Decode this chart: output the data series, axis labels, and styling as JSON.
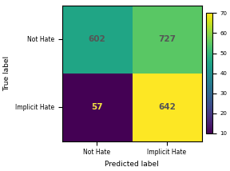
{
  "matrix": [
    [
      602,
      727
    ],
    [
      57,
      642
    ]
  ],
  "true_labels": [
    "Not Hate",
    "Implicit Hate"
  ],
  "pred_labels": [
    "Not Hate",
    "Implicit Hate"
  ],
  "xlabel": "Predicted label",
  "ylabel": "True label",
  "colormap": "viridis",
  "vmin": 10,
  "vmax": 70,
  "colorbar_ticks": [
    10,
    20,
    30,
    40,
    50,
    60,
    70
  ],
  "text_colors": {
    "dark_bg": "#f5e642",
    "light_bg": "#555555"
  },
  "tick_fontsize": 5.5,
  "label_fontsize": 6.5,
  "annot_fontsize": 7.5,
  "cbar_tick_fontsize": 5
}
